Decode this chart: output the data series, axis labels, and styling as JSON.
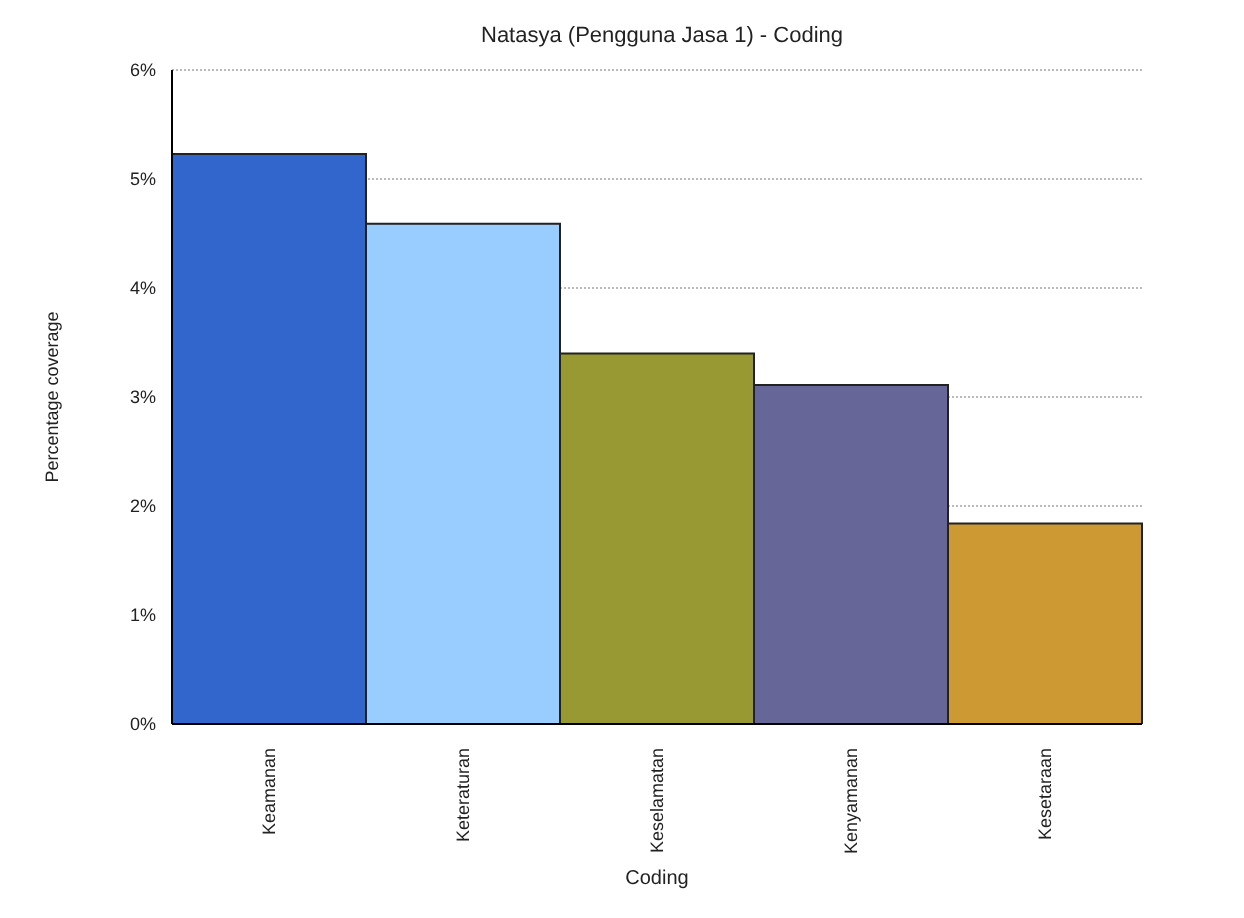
{
  "chart_data": {
    "type": "bar",
    "title": "Natasya (Pengguna Jasa 1) - Coding",
    "xlabel": "Coding",
    "ylabel": "Percentage coverage",
    "categories": [
      "Keamanan",
      "Keteraturan",
      "Keselamatan",
      "Kenyamanan",
      "Kesetaraan"
    ],
    "values": [
      5.23,
      4.59,
      3.4,
      3.11,
      1.84
    ],
    "colors": [
      "#3366cc",
      "#99ccff",
      "#999933",
      "#666699",
      "#cc9933"
    ],
    "ylim": [
      0,
      6
    ],
    "yticks": [
      {
        "value": 0,
        "label": "0%"
      },
      {
        "value": 1,
        "label": "1%"
      },
      {
        "value": 2,
        "label": "2%"
      },
      {
        "value": 3,
        "label": "3%"
      },
      {
        "value": 4,
        "label": "4%"
      },
      {
        "value": 5,
        "label": "5%"
      },
      {
        "value": 6,
        "label": "6%"
      }
    ],
    "grid": "y"
  }
}
